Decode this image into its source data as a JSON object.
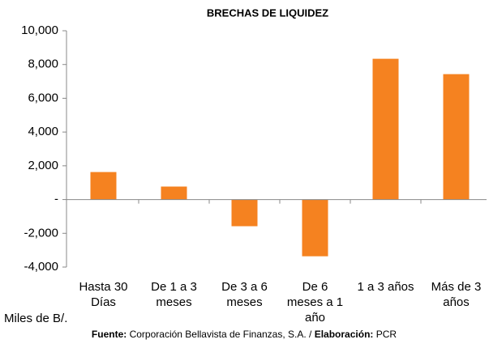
{
  "chart_data": {
    "type": "bar",
    "title": "BRECHAS DE LIQUIDEZ",
    "categories": [
      "Hasta 30 Días",
      "De 1 a 3 meses",
      "De 3 a 6 meses",
      "De 6 meses a 1 año",
      "1 a 3 años",
      "Más de 3 años"
    ],
    "values": [
      1630,
      770,
      -1580,
      -3360,
      8340,
      7430
    ],
    "color": "#f58220",
    "ylim": [
      -4000,
      10000
    ],
    "yticks": [
      {
        "value": -4000,
        "label": "-4,000"
      },
      {
        "value": -2000,
        "label": "-2,000"
      },
      {
        "value": 0,
        "label": "-"
      },
      {
        "value": 2000,
        "label": "2,000"
      },
      {
        "value": 4000,
        "label": "4,000"
      },
      {
        "value": 6000,
        "label": "6,000"
      },
      {
        "value": 8000,
        "label": "8,000"
      },
      {
        "value": 10000,
        "label": "10,000"
      }
    ],
    "grid": false,
    "unit_note": "Miles de B/.",
    "source_label": "Fuente:",
    "source": "Corporación Bellavista de Finanzas, S.A. /",
    "credit_label": "Elaboración:",
    "credit": "PCR"
  }
}
